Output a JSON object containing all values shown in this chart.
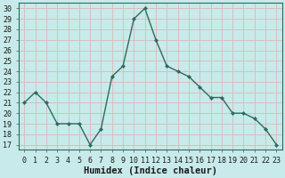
{
  "x": [
    0,
    1,
    2,
    3,
    4,
    5,
    6,
    7,
    8,
    9,
    10,
    11,
    12,
    13,
    14,
    15,
    16,
    17,
    18,
    19,
    20,
    21,
    22,
    23
  ],
  "y": [
    21,
    22,
    21,
    19,
    19,
    19,
    17,
    18.5,
    23.5,
    24.5,
    29,
    30,
    27,
    24.5,
    24,
    23.5,
    22.5,
    21.5,
    21.5,
    20,
    20,
    19.5,
    18.5,
    17
  ],
  "line_color": "#2d6b5e",
  "marker": "D",
  "marker_size": 2.0,
  "bg_color": "#c8eaea",
  "grid_color": "#d9b8b8",
  "xlabel": "Humidex (Indice chaleur)",
  "ylabel_ticks": [
    17,
    18,
    19,
    20,
    21,
    22,
    23,
    24,
    25,
    26,
    27,
    28,
    29,
    30
  ],
  "ylim": [
    16.5,
    30.5
  ],
  "xlim": [
    -0.5,
    23.5
  ],
  "xticks": [
    0,
    1,
    2,
    3,
    4,
    5,
    6,
    7,
    8,
    9,
    10,
    11,
    12,
    13,
    14,
    15,
    16,
    17,
    18,
    19,
    20,
    21,
    22,
    23
  ],
  "xlabel_fontsize": 7.5,
  "tick_fontsize": 6.0,
  "line_width": 1.0,
  "spine_color": "#2d6b5e"
}
